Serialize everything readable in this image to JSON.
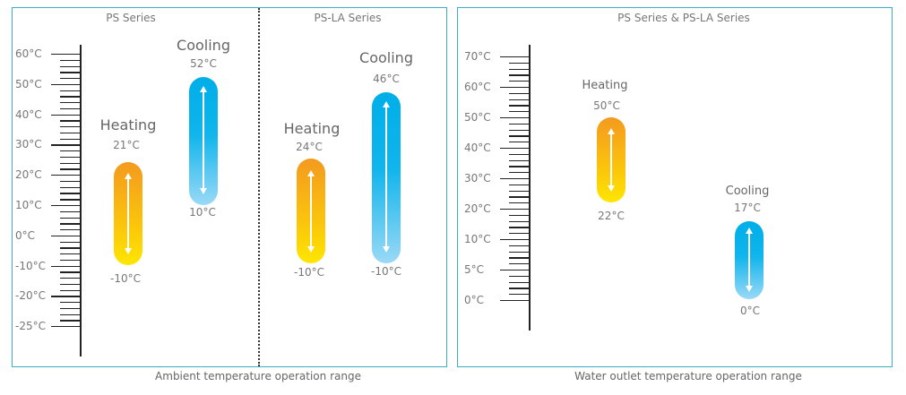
{
  "ambient": {
    "caption": "Ambient temperature operation range",
    "scale_labels": [
      "60°C",
      "50°C",
      "40°C",
      "30°C",
      "20°C",
      "10°C",
      "0°C",
      "-10°C",
      "-20°C",
      "-25°C"
    ],
    "ps": {
      "title": "PS Series",
      "heating": {
        "label": "Heating",
        "max": "21°C",
        "min": "-10°C"
      },
      "cooling": {
        "label": "Cooling",
        "max": "52°C",
        "min": "10°C"
      }
    },
    "psla": {
      "title": "PS-LA Series",
      "heating": {
        "label": "Heating",
        "max": "24°C",
        "min": "-10°C"
      },
      "cooling": {
        "label": "Cooling",
        "max": "46°C",
        "min": "-10°C"
      }
    }
  },
  "water": {
    "title": "PS Series & PS-LA Series",
    "caption": "Water outlet temperature operation range",
    "scale_labels": [
      "70°C",
      "60°C",
      "50°C",
      "40°C",
      "30°C",
      "20°C",
      "10°C",
      "5°C",
      "0°C"
    ],
    "heating": {
      "label": "Heating",
      "max": "50°C",
      "min": "22°C"
    },
    "cooling": {
      "label": "Cooling",
      "max": "17°C",
      "min": "0°C"
    }
  },
  "colors": {
    "border": "#3ab0c8",
    "heating": "#f39a1f",
    "cooling": "#00aee8"
  }
}
